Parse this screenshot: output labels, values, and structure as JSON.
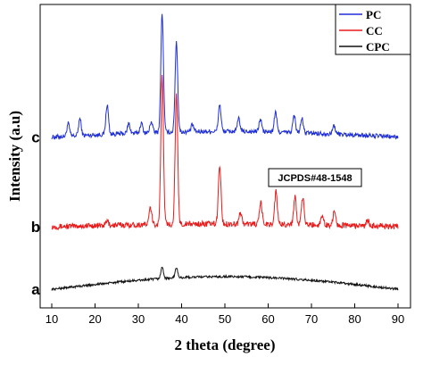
{
  "chart_data": {
    "type": "line",
    "xlabel": "2 theta (degree)",
    "ylabel": "Intensity (a.u)",
    "xlim": [
      10,
      90
    ],
    "x_ticks": [
      "10",
      "20",
      "30",
      "40",
      "50",
      "60",
      "70",
      "80",
      "90"
    ],
    "y_ticks_shown": false,
    "grid": false,
    "legend_position": "top-right",
    "annotation": "JCPDS#48-1548",
    "series": [
      {
        "name": "PC",
        "label": "c",
        "color": "#1f2fd6",
        "baseline": 590,
        "noise": 8,
        "ramp": 20,
        "peaks": [
          [
            13.8,
            45
          ],
          [
            16.5,
            60
          ],
          [
            22.8,
            105
          ],
          [
            27.8,
            35
          ],
          [
            30.7,
            35
          ],
          [
            33.0,
            40
          ],
          [
            35.5,
            420
          ],
          [
            38.8,
            320
          ],
          [
            42.5,
            25
          ],
          [
            48.8,
            95
          ],
          [
            53.2,
            45
          ],
          [
            58.2,
            45
          ],
          [
            61.7,
            70
          ],
          [
            66.0,
            60
          ],
          [
            67.8,
            50
          ],
          [
            75.2,
            30
          ]
        ]
      },
      {
        "name": "CC",
        "label": "b",
        "color": "#e81c1c",
        "baseline": 272,
        "noise": 10,
        "ramp": 10,
        "peaks": [
          [
            22.8,
            15
          ],
          [
            32.8,
            60
          ],
          [
            35.5,
            520
          ],
          [
            38.8,
            455
          ],
          [
            48.8,
            210
          ],
          [
            53.6,
            40
          ],
          [
            58.3,
            75
          ],
          [
            61.8,
            115
          ],
          [
            66.2,
            100
          ],
          [
            68.0,
            95
          ],
          [
            72.5,
            35
          ],
          [
            75.3,
            50
          ],
          [
            83.0,
            20
          ]
        ]
      },
      {
        "name": "CPC",
        "label": "a",
        "color": "#111111",
        "baseline": 50,
        "noise": 4,
        "ramp": 45,
        "peaks": [
          [
            35.5,
            40
          ],
          [
            38.8,
            35
          ]
        ]
      }
    ],
    "ylim": [
      0,
      1050
    ]
  }
}
